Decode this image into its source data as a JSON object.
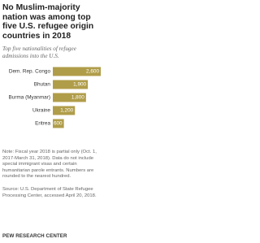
{
  "chart_data": {
    "type": "bar",
    "orientation": "horizontal",
    "title": "No Muslim-majority nation was among top five U.S. refugee origin countries in 2018",
    "subtitle": "Top five nationalities of refugee admissions into the U.S.",
    "categories": [
      "Dem. Rep. Congo",
      "Bhutan",
      "Burma (Myanmar)",
      "Ukraine",
      "Eritrea"
    ],
    "values": [
      2600,
      1900,
      1800,
      1200,
      600
    ],
    "value_labels": [
      "2,600",
      "1,900",
      "1,800",
      "1,200",
      "600"
    ],
    "color": "#b09d4a",
    "note": "Note: Fiscal year 2018 is partial only (Oct. 1, 2017-March 31, 2018). Data do not include special immigrant visas and certain humanitarian parole entrants. Numbers are rounded to the nearest hundred.",
    "source": "Source: U.S. Department of State Refugee Processing Center, accessed April 20, 2018.",
    "brand": "PEW RESEARCH CENTER"
  }
}
